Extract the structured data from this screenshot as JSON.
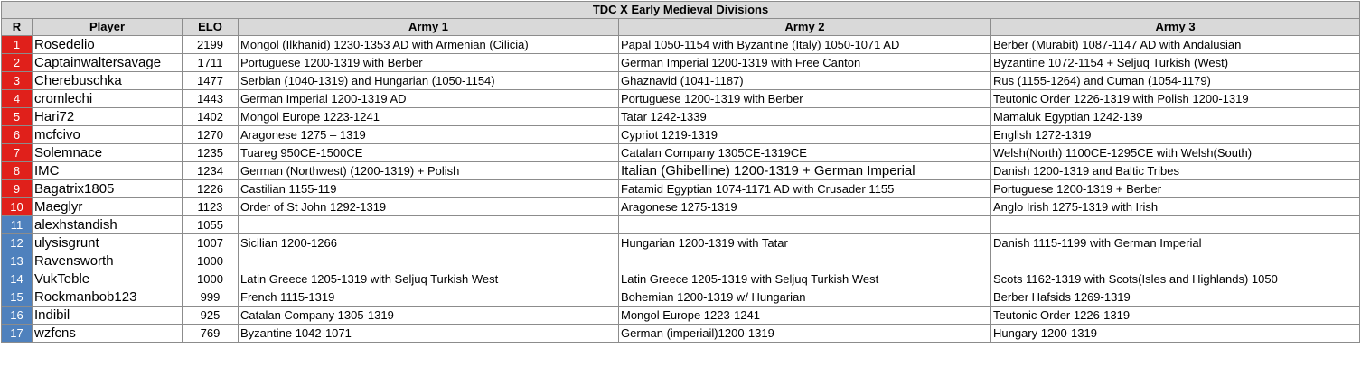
{
  "table": {
    "title": "TDC X Early Medieval Divisions",
    "columns": [
      "R",
      "Player",
      "ELO",
      "Army 1",
      "Army 2",
      "Army 3"
    ],
    "rows": [
      [
        1,
        "Rosedelio",
        2199,
        "Mongol (Ilkhanid) 1230-1353 AD with Armenian (Cilicia)",
        "Papal 1050-1154 with Byzantine (Italy) 1050-1071 AD",
        "Berber (Murabit) 1087-1147 AD with Andalusian"
      ],
      [
        2,
        "Captainwaltersavage",
        1711,
        "Portuguese 1200-1319 with Berber",
        "German Imperial 1200-1319 with Free Canton",
        "Byzantine 1072-1154 + Seljuq Turkish (West)"
      ],
      [
        3,
        "Cherebuschka",
        1477,
        "Serbian (1040-1319) and Hungarian (1050-1154)",
        "Ghaznavid (1041-1187)",
        "Rus (1155-1264) and Cuman (1054-1179)"
      ],
      [
        4,
        "cromlechi",
        1443,
        "German Imperial 1200-1319 AD",
        "Portuguese 1200-1319 with Berber",
        "Teutonic Order 1226-1319 with Polish 1200-1319"
      ],
      [
        5,
        "Hari72",
        1402,
        "Mongol Europe 1223-1241",
        "Tatar 1242-1339",
        "Mamaluk Egyptian 1242-139"
      ],
      [
        6,
        "mcfcivo",
        1270,
        "Aragonese 1275 – 1319",
        "Cypriot 1219-1319",
        "English 1272-1319"
      ],
      [
        7,
        "Solemnace",
        1235,
        "Tuareg 950CE-1500CE",
        "Catalan Company 1305CE-1319CE",
        "Welsh(North) 1100CE-1295CE with Welsh(South)"
      ],
      [
        8,
        "IMC",
        1234,
        "German (Northwest) (1200-1319) + Polish",
        "Italian (Ghibelline) 1200-1319 + German Imperial",
        "Danish 1200-1319 and Baltic Tribes"
      ],
      [
        9,
        "Bagatrix1805",
        1226,
        "Castilian 1155-119",
        "Fatamid Egyptian 1074-1171 AD with Crusader 1155",
        "Portuguese 1200-1319 + Berber"
      ],
      [
        10,
        "Maeglyr",
        1123,
        "Order of St John 1292-1319",
        "Aragonese 1275-1319",
        "Anglo Irish 1275-1319 with Irish"
      ],
      [
        11,
        "alexhstandish",
        1055,
        null,
        null,
        null
      ],
      [
        12,
        "ulysisgrunt",
        1007,
        "Sicilian 1200-1266",
        "Hungarian 1200-1319 with Tatar",
        "Danish 1115-1199 with German Imperial"
      ],
      [
        13,
        "Ravensworth",
        1000,
        null,
        null,
        null
      ],
      [
        14,
        "VukTeble",
        1000,
        "Latin Greece 1205-1319 with Seljuq Turkish West",
        "Latin Greece 1205-1319 with Seljuq Turkish West",
        "Scots 1162-1319 with Scots(Isles and Highlands) 1050"
      ],
      [
        15,
        "Rockmanbob123",
        999,
        "French 1115-1319",
        "Bohemian 1200-1319 w/ Hungarian",
        "Berber Hafsids 1269-1319"
      ],
      [
        16,
        "Indibil",
        925,
        "Catalan Company 1305-1319",
        "Mongol Europe 1223-1241",
        "Teutonic Order 1226-1319"
      ],
      [
        17,
        "wzfcns",
        769,
        "Byzantine 1042-1071",
        "German (imperiail)1200-1319",
        "Hungary 1200-1319"
      ]
    ]
  }
}
